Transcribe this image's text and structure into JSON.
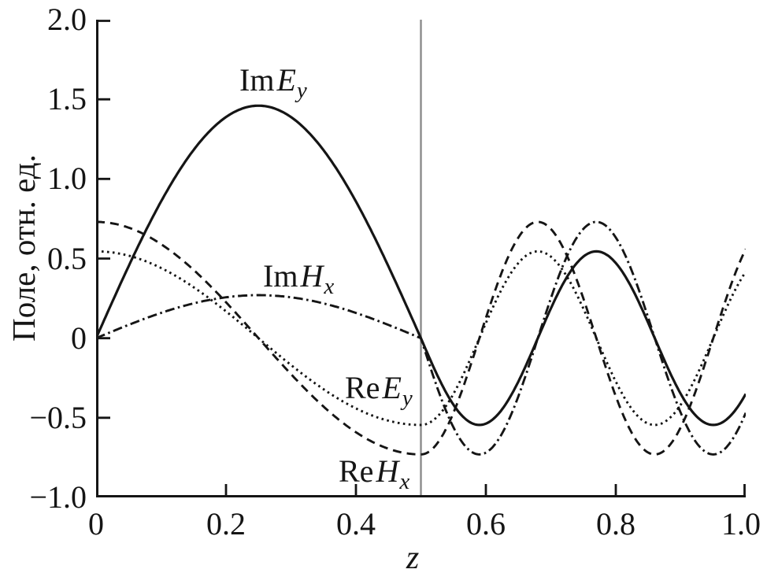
{
  "figure": {
    "background": "#ffffff",
    "axis_color": "#151515",
    "curve_color": "#151515",
    "boundary_line_color": "#8f8f8f"
  },
  "chart_data": {
    "type": "line",
    "title": "",
    "xlabel": "z",
    "ylabel": "Поле, отн. ед.",
    "xlim": [
      0,
      1.0
    ],
    "ylim": [
      -1.0,
      2.0
    ],
    "grid": false,
    "legend_position": "inline-curve-labels",
    "boundary_x": 0.5,
    "x_ticks": [
      {
        "value": 0.0,
        "label": "0"
      },
      {
        "value": 0.2,
        "label": "0.2"
      },
      {
        "value": 0.4,
        "label": "0.4"
      },
      {
        "value": 0.6,
        "label": "0.6"
      },
      {
        "value": 0.8,
        "label": "0.8"
      },
      {
        "value": 1.0,
        "label": "1.0"
      }
    ],
    "y_ticks": [
      {
        "value": 2.0,
        "label": "2.0"
      },
      {
        "value": 1.5,
        "label": "1.5"
      },
      {
        "value": 1.0,
        "label": "1.0"
      },
      {
        "value": 0.5,
        "label": "0.5"
      },
      {
        "value": 0.0,
        "label": "0"
      },
      {
        "value": -0.5,
        "label": "−0.5"
      },
      {
        "value": -1.0,
        "label": "−1.0"
      }
    ],
    "model": {
      "description": "Piecewise sinusoidal standing-wave fields in a two-layer medium; region 1 for 0<=z<=0.5 uses wavenumber k1, region 2 for 0.5<z<=1 uses k2 with phase measured from z=0.5.",
      "k1": 6.28319,
      "k2": 17.45329,
      "boundary_x": 0.5
    },
    "x_samples": [
      0,
      0.05,
      0.1,
      0.15,
      0.2,
      0.25,
      0.3,
      0.35,
      0.4,
      0.45,
      0.5,
      0.55,
      0.6,
      0.65,
      0.7,
      0.75,
      0.8,
      0.85,
      0.9,
      0.95,
      1.0
    ],
    "series": [
      {
        "name": "Im Ey",
        "label": {
          "prefix": "Im",
          "symbol": "E",
          "sub": "y"
        },
        "style": "solid",
        "generator": {
          "r1_amp": 1.46,
          "r1_fn": "sin",
          "r2_amp": -0.545,
          "r2_fn": "sin"
        },
        "values": [
          0,
          0.451,
          0.858,
          1.181,
          1.388,
          1.46,
          1.388,
          1.181,
          0.858,
          0.451,
          0,
          -0.418,
          -0.537,
          -0.273,
          0.186,
          0.512,
          0.472,
          0.095,
          -0.35,
          -0.545,
          -0.35
        ]
      },
      {
        "name": "Im Hx",
        "label": {
          "prefix": "Im",
          "symbol": "H",
          "sub": "x"
        },
        "style": "dashdot",
        "generator": {
          "r1_amp": 0.27,
          "r1_fn": "sin",
          "r2_amp": -0.73,
          "r2_fn": "sin"
        },
        "values": [
          0,
          0.083,
          0.159,
          0.218,
          0.257,
          0.27,
          0.257,
          0.218,
          0.159,
          0.083,
          0,
          -0.559,
          -0.719,
          -0.365,
          0.25,
          0.686,
          0.632,
          0.127,
          -0.469,
          -0.73,
          -0.469
        ]
      },
      {
        "name": "Re Ey",
        "label": {
          "prefix": "Re",
          "symbol": "E",
          "sub": "y"
        },
        "style": "dotted",
        "generator": {
          "r1_amp": 0.545,
          "r1_fn": "cos",
          "r2_amp": -0.545,
          "r2_fn": "cos"
        },
        "values": [
          0.545,
          0.518,
          0.441,
          0.32,
          0.168,
          0,
          -0.168,
          -0.32,
          -0.441,
          -0.518,
          -0.545,
          -0.35,
          0.095,
          0.472,
          0.512,
          0.186,
          -0.273,
          -0.537,
          -0.418,
          0,
          0.418
        ]
      },
      {
        "name": "Re Hx",
        "label": {
          "prefix": "Re",
          "symbol": "H",
          "sub": "x"
        },
        "style": "dashed",
        "generator": {
          "r1_amp": 0.73,
          "r1_fn": "cos",
          "r2_amp": -0.73,
          "r2_fn": "cos"
        },
        "values": [
          0.73,
          0.694,
          0.59,
          0.429,
          0.226,
          0,
          -0.226,
          -0.429,
          -0.59,
          -0.694,
          -0.73,
          -0.469,
          0.127,
          0.632,
          0.686,
          0.25,
          -0.365,
          -0.719,
          -0.559,
          0,
          0.559
        ]
      }
    ]
  }
}
